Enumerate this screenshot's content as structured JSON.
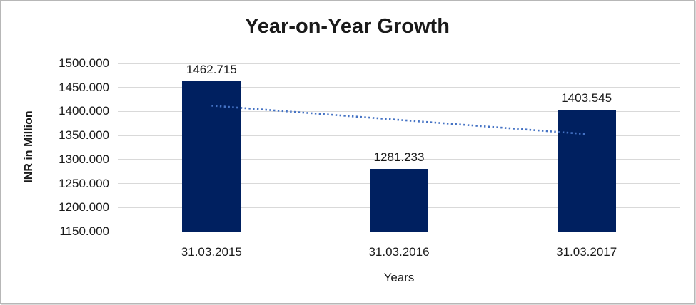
{
  "chart_data": {
    "type": "bar",
    "title": "Year-on-Year Growth",
    "xlabel": "Years",
    "ylabel": "INR in Million",
    "categories": [
      "31.03.2015",
      "31.03.2016",
      "31.03.2017"
    ],
    "values": [
      1462.715,
      1281.233,
      1403.545
    ],
    "data_labels": [
      "1462.715",
      "1281.233",
      "1403.545"
    ],
    "ylim": [
      1150,
      1500
    ],
    "ytick_step": 50,
    "ytick_labels": [
      "1500.000",
      "1450.000",
      "1400.000",
      "1350.000",
      "1300.000",
      "1250.000",
      "1200.000",
      "1150.000"
    ],
    "grid": true,
    "legend_position": "none",
    "bar_color": "#002060",
    "gridline_color": "#d9d9d9",
    "text_color": "#1a1a1a",
    "trendline": {
      "type": "linear",
      "style": "dotted",
      "color": "#4472c4",
      "start_value": 1412.1,
      "end_value": 1352.9
    }
  }
}
